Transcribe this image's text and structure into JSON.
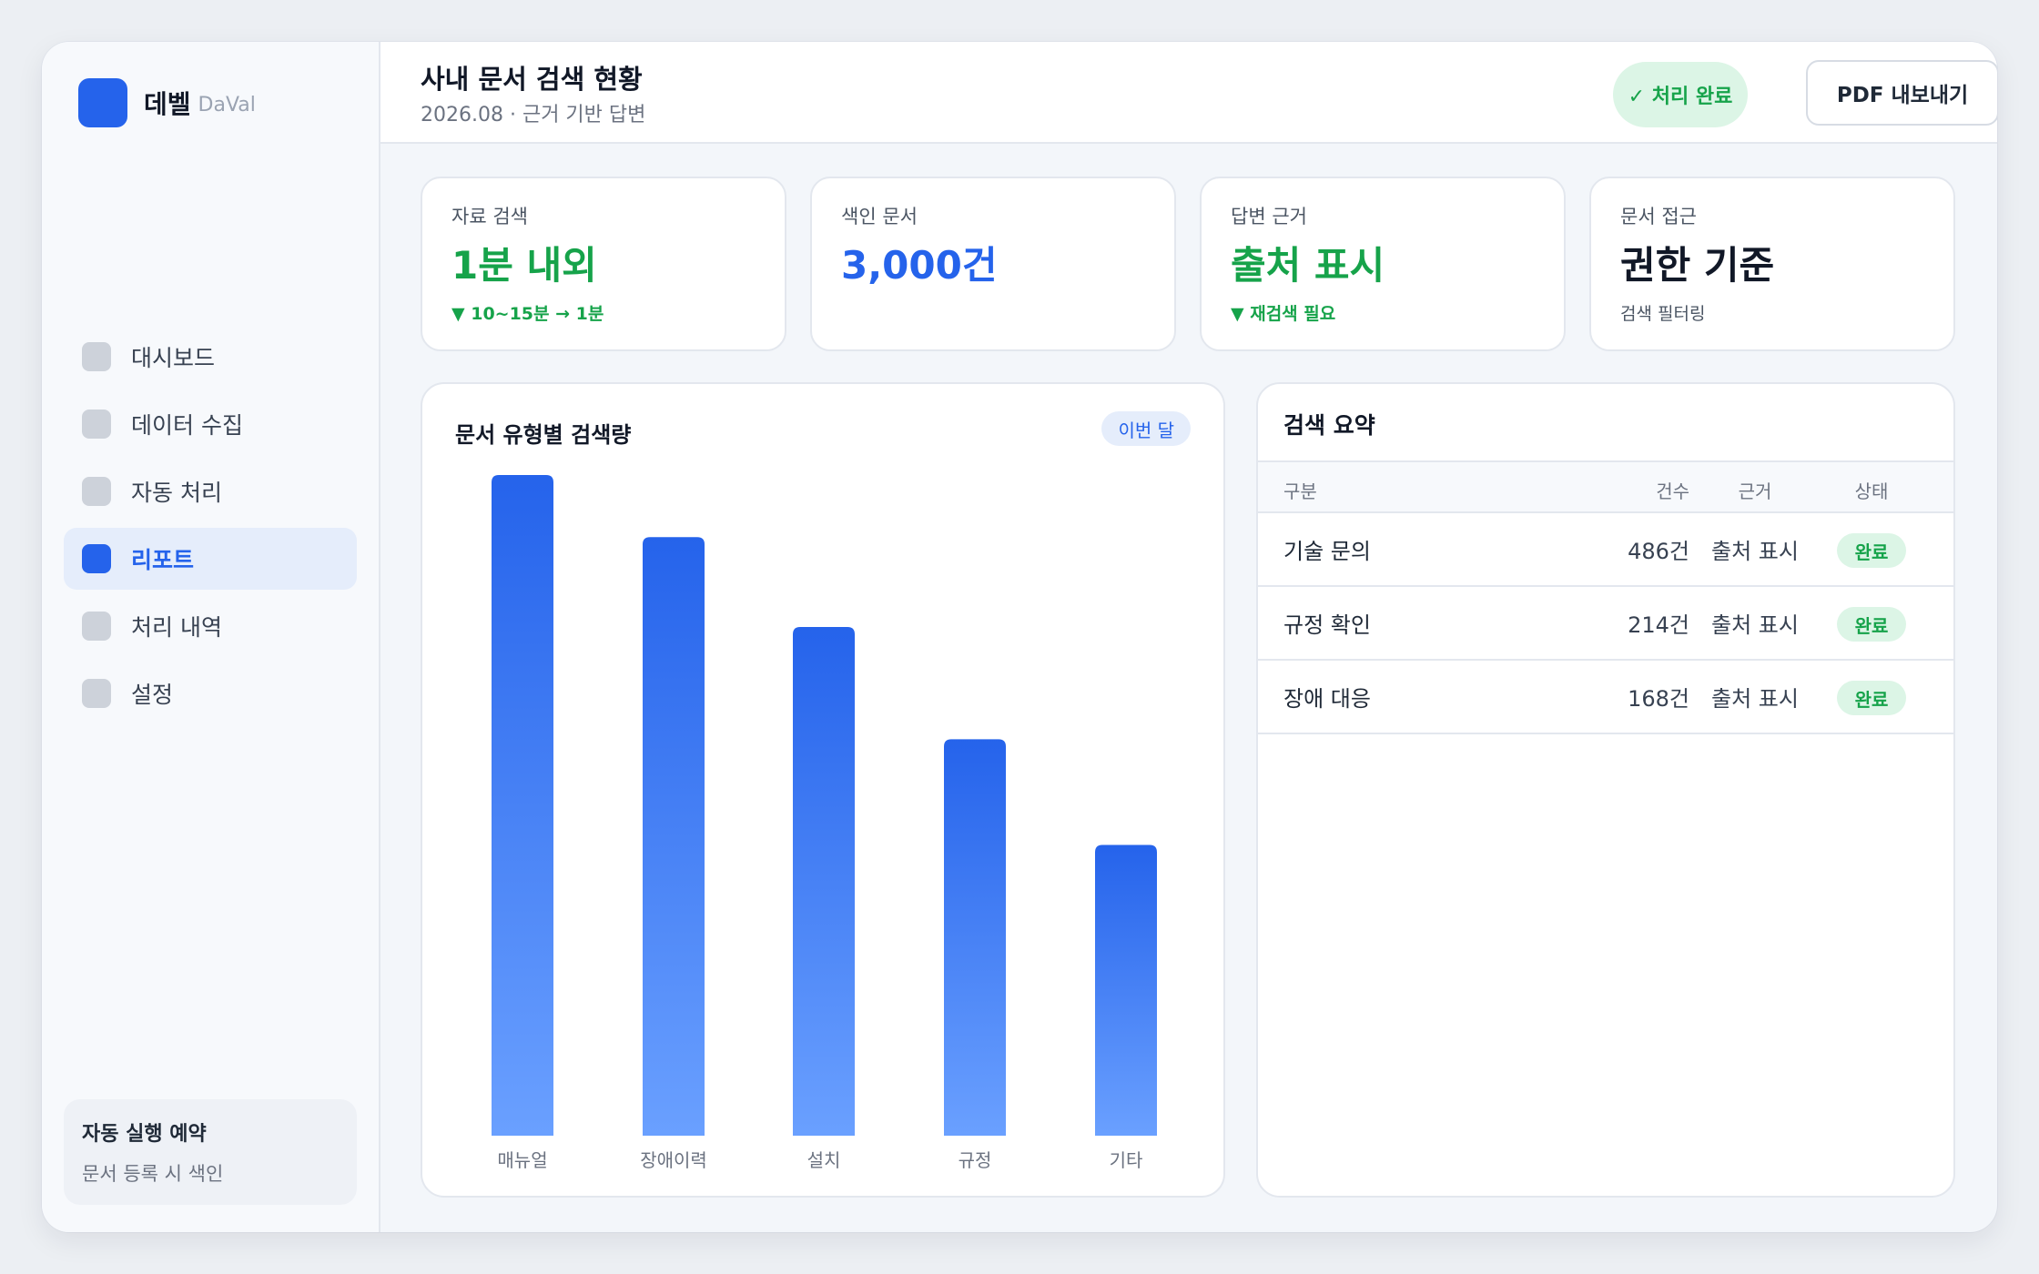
{
  "brand": {
    "name": "데벨",
    "sub": "DaVal"
  },
  "nav": [
    {
      "label": "대시보드",
      "active": false
    },
    {
      "label": "데이터 수집",
      "active": false
    },
    {
      "label": "자동 처리",
      "active": false
    },
    {
      "label": "리포트",
      "active": true
    },
    {
      "label": "처리 내역",
      "active": false
    },
    {
      "label": "설정",
      "active": false
    }
  ],
  "schedule": {
    "title": "자동 실행 예약",
    "desc": "문서 등록 시 색인"
  },
  "header": {
    "title": "사내 문서 검색 현황",
    "subtitle": "2026.08 · 근거 기반 답변",
    "status": "✓ 처리 완료",
    "export_label": "PDF 내보내기"
  },
  "kpis": [
    {
      "label": "자료 검색",
      "value": "1분 내외",
      "note": "▼ 10~15분 → 1분",
      "value_color": "#16a34a",
      "note_color": "#16a34a"
    },
    {
      "label": "색인 문서",
      "value": "3,000건",
      "note": "",
      "value_color": "#2563eb",
      "note_color": "#16a34a"
    },
    {
      "label": "답변 근거",
      "value": "출처 표시",
      "note": "▼ 재검색 필요",
      "value_color": "#16a34a",
      "note_color": "#16a34a"
    },
    {
      "label": "문서 접근",
      "value": "권한 기준",
      "note": "검색 필터링",
      "value_color": "#111827",
      "note_color": "#4b5563"
    }
  ],
  "chart_panel": {
    "title": "문서 유형별 검색량",
    "period": "이번 달"
  },
  "chart_data": {
    "type": "bar",
    "categories": [
      "매뉴얼",
      "장애이력",
      "설치",
      "규정",
      "기타"
    ],
    "values": [
      100,
      90.6,
      77,
      60,
      44
    ],
    "ylim": [
      0,
      100
    ],
    "colors": {
      "top": "#2563eb",
      "bottom": "#6aa0ff"
    }
  },
  "summary": {
    "title": "검색 요약",
    "columns": [
      "구분",
      "건수",
      "근거",
      "상태"
    ],
    "rows": [
      {
        "category": "기술 문의",
        "count": "486건",
        "source": "출처 표시",
        "status": "완료"
      },
      {
        "category": "규정 확인",
        "count": "214건",
        "source": "출처 표시",
        "status": "완료"
      },
      {
        "category": "장애 대응",
        "count": "168건",
        "source": "출처 표시",
        "status": "완료"
      }
    ]
  }
}
